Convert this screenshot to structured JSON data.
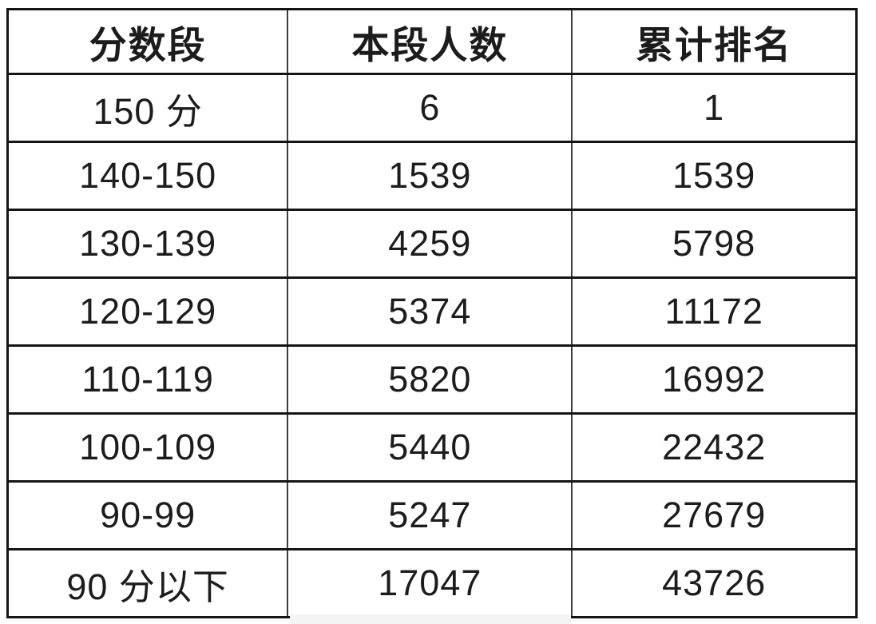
{
  "table": {
    "columns": [
      {
        "label": "分数段"
      },
      {
        "label": "本段人数"
      },
      {
        "label": "累计排名"
      }
    ],
    "rows": [
      {
        "range": "150 分",
        "count": "6",
        "cum_rank": "1"
      },
      {
        "range": "140-150",
        "count": "1539",
        "cum_rank": "1539"
      },
      {
        "range": "130-139",
        "count": "4259",
        "cum_rank": "5798"
      },
      {
        "range": "120-129",
        "count": "5374",
        "cum_rank": "11172"
      },
      {
        "range": "110-119",
        "count": "5820",
        "cum_rank": "16992"
      },
      {
        "range": "100-109",
        "count": "5440",
        "cum_rank": "22432"
      },
      {
        "range": "90-99",
        "count": "5247",
        "cum_rank": "27679"
      },
      {
        "range": "90 分以下",
        "count": "17047",
        "cum_rank": "43726"
      }
    ]
  },
  "chart_data": {
    "type": "table",
    "title": "",
    "columns": [
      "分数段",
      "本段人数",
      "累计排名"
    ],
    "rows": [
      [
        "150 分",
        6,
        1
      ],
      [
        "140-150",
        1539,
        1539
      ],
      [
        "130-139",
        4259,
        5798
      ],
      [
        "120-129",
        5374,
        11172
      ],
      [
        "110-119",
        5820,
        16992
      ],
      [
        "100-109",
        5440,
        22432
      ],
      [
        "90-99",
        5247,
        27679
      ],
      [
        "90 分以下",
        17047,
        43726
      ]
    ]
  },
  "colors": {
    "border_heavy": "#151515",
    "border_light": "#3c3c3c",
    "text": "#1c1c1c",
    "background": "#ffffff",
    "bottom_strip": "#f4f4f5"
  }
}
